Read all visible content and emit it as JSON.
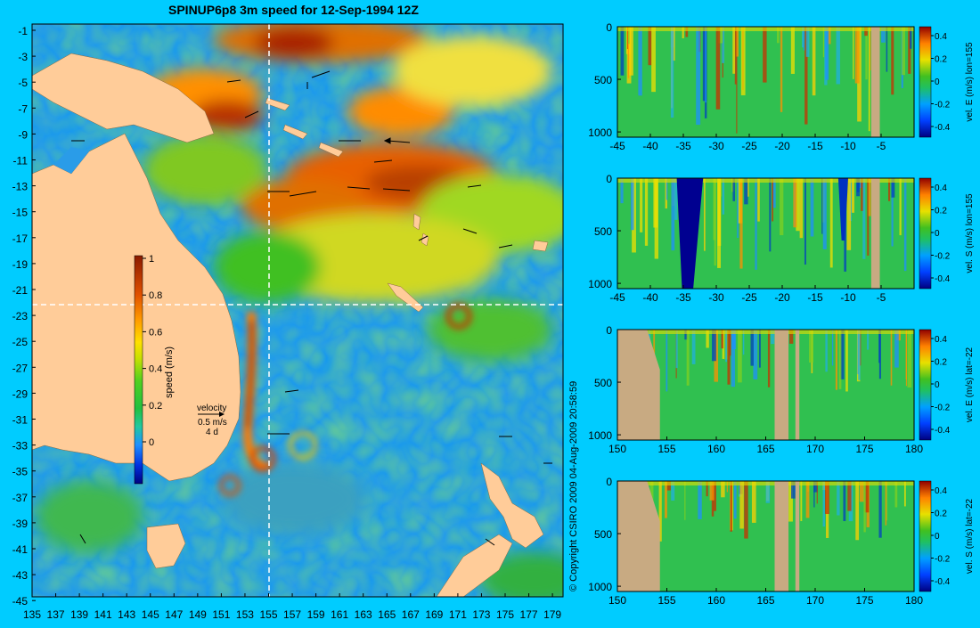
{
  "title": "SPINUP6p8 3m speed for 12-Sep-1994 12Z",
  "copyright": "© Copyright CSIRO 2009 04-Aug-2009 20:58:59",
  "colors": {
    "background": "#00ccff",
    "land": "#ffcc99",
    "section_land": "#c8aa82",
    "crosshair": "#ffffff"
  },
  "map": {
    "lat_ticks": [
      "-1",
      "-3",
      "-5",
      "-7",
      "-9",
      "-11",
      "-13",
      "-15",
      "-17",
      "-19",
      "-21",
      "-23",
      "-25",
      "-27",
      "-29",
      "-31",
      "-33",
      "-35",
      "-37",
      "-39",
      "-41",
      "-43",
      "-45"
    ],
    "lon_ticks": [
      "135",
      "137",
      "139",
      "141",
      "143",
      "145",
      "147",
      "149",
      "151",
      "153",
      "155",
      "157",
      "159",
      "161",
      "163",
      "165",
      "167",
      "169",
      "171",
      "173",
      "175",
      "177",
      "179"
    ],
    "lat_range": [
      -45,
      0
    ],
    "lon_range": [
      135,
      180
    ],
    "crosshair": {
      "lon": 155,
      "lat": -22
    },
    "colorbar": {
      "label": "speed (m/s)",
      "ticks": [
        "1",
        "0.8",
        "0.6",
        "0.4",
        "0.2",
        "0"
      ],
      "range": [
        -0.2,
        1
      ]
    },
    "velocity_legend": {
      "label": "velocity",
      "scale": "0.5 m/s",
      "time": "4 d"
    }
  },
  "sections": [
    {
      "name": "vel-e-lon155",
      "label": "vel. E (m/s) lon=155",
      "x_ticks": [
        "-45",
        "-40",
        "-35",
        "-30",
        "-25",
        "-20",
        "-15",
        "-10",
        "-5"
      ],
      "x_range": [
        -45,
        0
      ],
      "y_ticks": [
        "0",
        "500",
        "1000"
      ],
      "y_range": [
        0,
        1050
      ],
      "cbar_ticks": [
        "0.4",
        "0.2",
        "0",
        "-0.2",
        "-0.4"
      ]
    },
    {
      "name": "vel-s-lon155",
      "label": "vel. S (m/s) lon=155",
      "x_ticks": [
        "-45",
        "-40",
        "-35",
        "-30",
        "-25",
        "-20",
        "-15",
        "-10",
        "-5"
      ],
      "x_range": [
        -45,
        0
      ],
      "y_ticks": [
        "0",
        "500",
        "1000"
      ],
      "y_range": [
        0,
        1050
      ],
      "cbar_ticks": [
        "0.4",
        "0.2",
        "0",
        "-0.2",
        "-0.4"
      ]
    },
    {
      "name": "vel-e-lat22",
      "label": "vel. E (m/s) lat=-22",
      "x_ticks": [
        "150",
        "155",
        "160",
        "165",
        "170",
        "175",
        "180"
      ],
      "x_range": [
        150,
        180
      ],
      "y_ticks": [
        "0",
        "500",
        "1000"
      ],
      "y_range": [
        0,
        1050
      ],
      "cbar_ticks": [
        "0.4",
        "0.2",
        "0",
        "-0.2",
        "-0.4"
      ]
    },
    {
      "name": "vel-s-lat22",
      "label": "vel. S (m/s) lat=-22",
      "x_ticks": [
        "150",
        "155",
        "160",
        "165",
        "170",
        "175",
        "180"
      ],
      "x_range": [
        150,
        180
      ],
      "y_ticks": [
        "0",
        "500",
        "1000"
      ],
      "y_range": [
        0,
        1050
      ],
      "cbar_ticks": [
        "0.4",
        "0.2",
        "0",
        "-0.2",
        "-0.4"
      ]
    }
  ]
}
